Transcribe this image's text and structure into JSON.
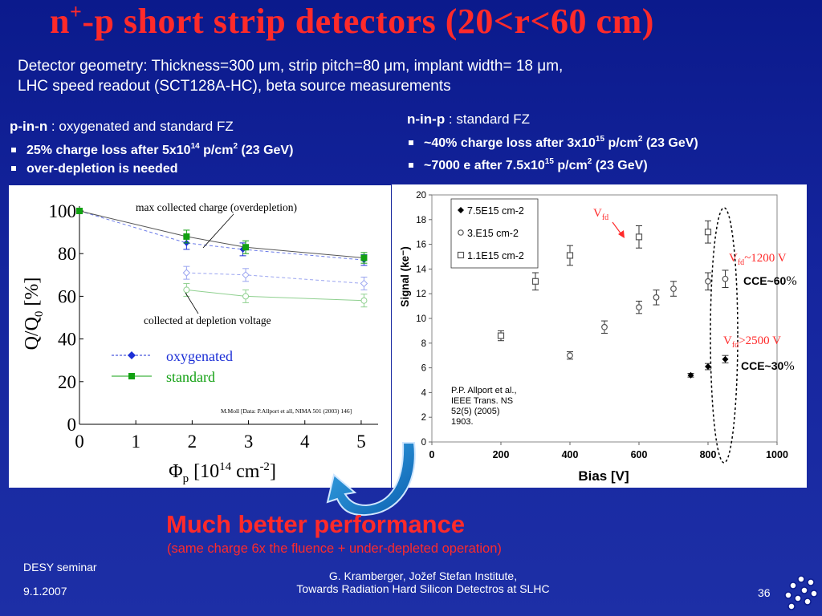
{
  "slide": {
    "title_part1": "n",
    "title_sup": "+",
    "title_part2": "-p short strip detectors (20<r<60 cm)",
    "geometry_line1": "Detector geometry: Thickness=300 μm, strip pitch=80 μm, implant width= 18 μm,",
    "geometry_line2": "LHC speed readout (SCT128A-HC), beta source measurements",
    "left_head_bold": "p-in-n",
    "left_head_rest": " : oxygenated and standard FZ",
    "left_bullets": [
      {
        "pre": "25% charge loss after 5x10",
        "sup": "14",
        "mid": " p/cm",
        "sup2": "2",
        "post": " (23 GeV)"
      },
      {
        "pre": "over-depletion is needed",
        "sup": "",
        "mid": "",
        "sup2": "",
        "post": ""
      }
    ],
    "right_head_bold": "n-in-p",
    "right_head_rest": " : standard FZ",
    "right_bullets": [
      {
        "pre": "~40% charge loss after 3x10",
        "sup": "15",
        "mid": " p/cm",
        "sup2": "2",
        "post": " (23 GeV)"
      },
      {
        "pre": "~7000 e after 7.5x10",
        "sup": "15",
        "mid": " p/cm",
        "sup2": "2",
        "post": " (23 GeV)"
      }
    ],
    "conclusion": "Much better performance",
    "conclusion_sub": "(same charge 6x the fluence + under-depleted operation)",
    "footer_left1": "DESY seminar",
    "footer_left2": "9.1.2007",
    "footer_center1": "G. Kramberger, Jožef Stefan Institute,",
    "footer_center2": "Towards Radiation Hard Silicon Detectros at SLHC",
    "page_number": "36",
    "accent_red": "#ff2a2a",
    "background": "#1626a0"
  },
  "chart_data": [
    {
      "type": "line",
      "x_ticks": [
        0,
        1,
        2,
        3,
        4,
        5
      ],
      "y_ticks": [
        0,
        20,
        40,
        60,
        80,
        100
      ],
      "xlim": [
        0,
        5.3
      ],
      "ylim": [
        0,
        100
      ],
      "ylabel_main": "Q/Q",
      "ylabel_sub": "0",
      "ylabel_unit": " [%]",
      "xlabel_main": "Φ",
      "xlabel_sub": "p",
      "xlabel_open": " [10",
      "xlabel_sup1": "14",
      "xlabel_mid": " cm",
      "xlabel_sup2": "-2",
      "xlabel_close": "]",
      "annotation_top": "max collected charge (overdepletion)",
      "annotation_mid": "collected at depletion voltage",
      "credit": "M.Moll [Data: P.Allport et all, NIMA 501 (2003) 146]",
      "legend": "inside, center-left",
      "series": [
        {
          "name": "oxygenated",
          "color": "#1c2fd6",
          "marker": "diamond",
          "subset": "overdepletion",
          "x": [
            0,
            1.9,
            2.9,
            5.05
          ],
          "y": [
            100,
            85,
            82,
            77
          ],
          "err": [
            0,
            3,
            3,
            2.5
          ]
        },
        {
          "name": "standard",
          "color": "#12a012",
          "marker": "square",
          "subset": "overdepletion",
          "x": [
            0,
            1.9,
            2.95,
            5.05
          ],
          "y": [
            100,
            88,
            83,
            78
          ],
          "err": [
            0,
            3,
            3,
            2.5
          ]
        },
        {
          "name": "",
          "color": "#1c2fd6",
          "marker": "diamond-open",
          "subset": "depletion",
          "x": [
            1.9,
            2.95,
            5.05
          ],
          "y": [
            71,
            70,
            66
          ],
          "err": [
            3,
            3,
            3
          ]
        },
        {
          "name": "",
          "color": "#12a012",
          "marker": "circle-open",
          "subset": "depletion",
          "x": [
            1.9,
            2.95,
            5.05
          ],
          "y": [
            63,
            60,
            58
          ],
          "err": [
            3,
            3,
            3
          ]
        }
      ]
    },
    {
      "type": "scatter",
      "xlabel": "Bias [V]",
      "ylabel": "Signal (ke⁻)",
      "x_ticks": [
        0,
        200,
        400,
        600,
        800,
        1000
      ],
      "y_ticks": [
        0,
        2,
        4,
        6,
        8,
        10,
        12,
        14,
        16,
        18,
        20
      ],
      "xlim": [
        0,
        1000
      ],
      "ylim": [
        0,
        20
      ],
      "grid": false,
      "legend": "top-left",
      "series": [
        {
          "name": "7.5E15 cm-2",
          "marker": "diamond-filled",
          "x": [
            750,
            800,
            850
          ],
          "y": [
            5.4,
            6.1,
            6.7
          ],
          "err": [
            0.15,
            0.25,
            0.3
          ]
        },
        {
          "name": "3.E15 cm-2",
          "marker": "circle-open",
          "x": [
            400,
            500,
            600,
            650,
            700,
            800,
            850
          ],
          "y": [
            7.0,
            9.3,
            10.9,
            11.7,
            12.4,
            13.0,
            13.2
          ],
          "err": [
            0.3,
            0.5,
            0.5,
            0.6,
            0.6,
            0.7,
            0.7
          ]
        },
        {
          "name": "1.1E15 cm-2",
          "marker": "square-open",
          "x": [
            200,
            300,
            400,
            600,
            800
          ],
          "y": [
            8.6,
            13.0,
            15.1,
            16.6,
            17.0
          ],
          "err": [
            0.4,
            0.7,
            0.8,
            0.9,
            0.9
          ]
        }
      ],
      "reference": "P.P. Allport et al.,\nIEEE Trans. NS\n52(5) (2005)\n1903.",
      "annot_vfd_main": "V",
      "annot_vfd_sub": "fd",
      "annot_1200_main": "V",
      "annot_1200_sub": "fd",
      "annot_1200_rest": "~1200 V",
      "annot_cce60_pre": "CCE~60",
      "annot_cce60_pct": "%",
      "annot_2500_main": "V",
      "annot_2500_sub": "fd",
      "annot_2500_rest": ">2500 V",
      "annot_cce30_pre": "CCE~30",
      "annot_cce30_pct": "%"
    }
  ]
}
